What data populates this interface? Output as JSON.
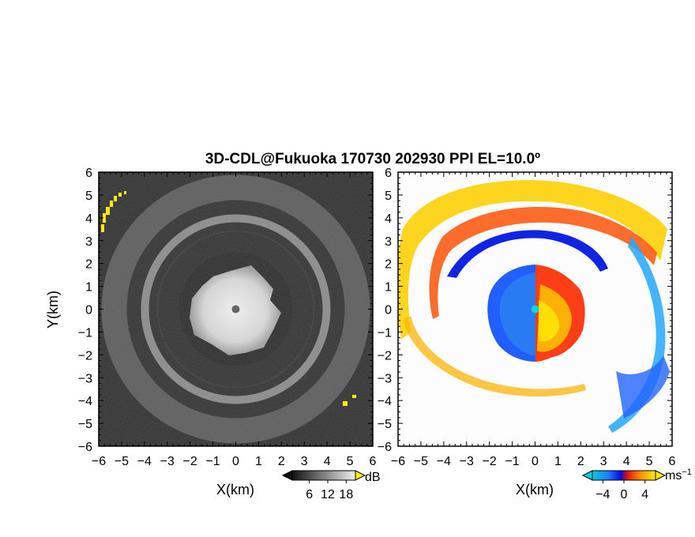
{
  "title": "3D-CDL@Fukuoka 170730 202930 PPI EL=10.0º",
  "colors": {
    "background": "#ffffff",
    "axis": "#000000",
    "highlight_yellow": "#ffee00",
    "center_left": "#555555",
    "center_right": "#00d8d8"
  },
  "chart_data": [
    {
      "type": "heatmap",
      "panel": "reflectivity",
      "xlabel": "X(km)",
      "ylabel": "Y(km)",
      "xlim": [
        -6,
        6
      ],
      "ylim": [
        -6,
        6
      ],
      "x_ticks": [
        -6,
        -5,
        -4,
        -3,
        -2,
        -1,
        0,
        1,
        2,
        3,
        4,
        5,
        6
      ],
      "y_ticks": [
        -6,
        -5,
        -4,
        -3,
        -2,
        -1,
        0,
        1,
        2,
        3,
        4,
        5,
        6
      ],
      "colormap": "grayscale, yellow above max",
      "colorbar": {
        "label": "dB",
        "ticks": [
          6,
          12,
          18
        ],
        "extend": "both"
      },
      "features": [
        {
          "kind": "bright core",
          "center": [
            0,
            0
          ],
          "radius_km": 2.0
        },
        {
          "kind": "dark ring",
          "inner_radius_km": 2.2,
          "outer_radius_km": 3.5
        },
        {
          "kind": "bright ring",
          "radius_km": 3.75
        },
        {
          "kind": "dark ring",
          "inner_radius_km": 4.0,
          "outer_radius_km": 4.8
        },
        {
          "kind": "outer echo",
          "inner_radius_km": 5.0,
          "outer_radius_km": 6.0
        },
        {
          "kind": "saturated patch",
          "x": -5.2,
          "y": 4.6
        },
        {
          "kind": "saturated patch",
          "x": 4.9,
          "y": -4.0
        }
      ]
    },
    {
      "type": "heatmap",
      "panel": "radial_velocity",
      "xlabel": "X(km)",
      "ylabel": "",
      "xlim": [
        -6,
        6
      ],
      "ylim": [
        -6,
        6
      ],
      "x_ticks": [
        -6,
        -5,
        -4,
        -3,
        -2,
        -1,
        0,
        1,
        2,
        3,
        4,
        5,
        6
      ],
      "y_ticks": [
        -6,
        -5,
        -4,
        -3,
        -2,
        -1,
        0,
        1,
        2,
        3,
        4,
        5,
        6
      ],
      "colormap": "cyan-blue (negative) to yellow-orange-red (positive)",
      "colorbar": {
        "label": "ms",
        "label_superscript": "−1",
        "ticks": [
          -4,
          0,
          4
        ],
        "extend": "both"
      },
      "features": [
        {
          "kind": "core negative (blue)",
          "x_range": [
            -2.0,
            0
          ],
          "radius_km": 2.0
        },
        {
          "kind": "core positive (yellow/red)",
          "x_range": [
            0,
            2.2
          ],
          "radius_km": 2.0
        },
        {
          "kind": "inner spiral band, negative",
          "radius_km": 3.6
        },
        {
          "kind": "outer spiral band, positive",
          "radius_km": 5.2
        },
        {
          "kind": "east edge band, negative",
          "radius_km": 5.6
        }
      ]
    }
  ]
}
